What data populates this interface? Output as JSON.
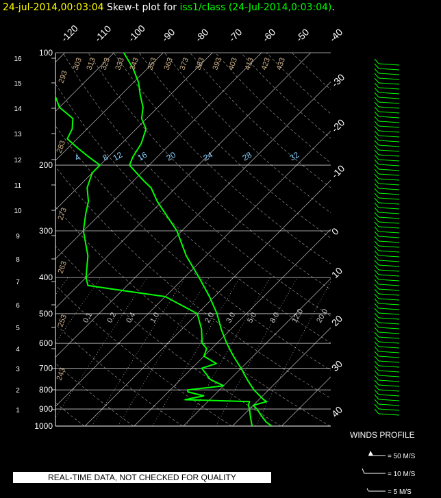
{
  "title": {
    "timestamp": "24-jul-2014,00:03:04",
    "plot_label": " Skew-t plot for ",
    "station": "iss1/class (24-Jul-2014,0:03:04)",
    "suffix": "."
  },
  "disclaimer": "REAL-TIME DATA, NOT CHECKED FOR QUALITY",
  "winds_profile": {
    "title": "WINDS PROFILE",
    "legend": [
      "= 50 M/S",
      "= 10 M/S",
      "= 5 M/S"
    ]
  },
  "colors": {
    "background": "#000000",
    "trace": "#00ff00",
    "isotherm": "#ffffff",
    "isobar": "#ffffff",
    "dry_adiabat_label": "#d2b48c",
    "mixing_ratio_label": "#87cefa",
    "wind_barb": "#00ff00"
  },
  "chart_data": {
    "type": "line",
    "title": "Skew-t plot",
    "pressure_levels": [
      100,
      200,
      300,
      400,
      500,
      600,
      700,
      800,
      900,
      1000
    ],
    "height_ticks": [
      "16",
      "15",
      "14",
      "13",
      "12",
      "11",
      "10",
      "9",
      "8",
      "7",
      "6",
      "5",
      "4",
      "3",
      "2",
      "1"
    ],
    "isotherm_labels_top": [
      "-120",
      "-110",
      "-100",
      "-90",
      "-80",
      "-70",
      "-60",
      "-50",
      "-40"
    ],
    "isotherm_labels_right": [
      "-30",
      "-20",
      "-10",
      "0",
      "10",
      "20",
      "30",
      "40"
    ],
    "dry_adiabat_labels": [
      "293",
      "303",
      "313",
      "323",
      "333",
      "343",
      "353",
      "363",
      "373",
      "383",
      "393",
      "403",
      "413",
      "423",
      "433",
      "283",
      "273",
      "263",
      "253",
      "243"
    ],
    "mixing_ratio_labels": [
      "4",
      "8",
      "12",
      "16",
      "20",
      "24",
      "28",
      "32"
    ],
    "saturation_labels": [
      "0.1",
      "0.2",
      "0.4",
      "1.0",
      "2.0",
      "3.0",
      "5.0",
      "8.0",
      "12.0",
      "20.0"
    ],
    "series": [
      {
        "name": "Temperature",
        "points": [
          [
            1000,
            28
          ],
          [
            975,
            26
          ],
          [
            950,
            24.5
          ],
          [
            925,
            23
          ],
          [
            900,
            21.5
          ],
          [
            880,
            20
          ],
          [
            860,
            22
          ],
          [
            850,
            21
          ],
          [
            800,
            17
          ],
          [
            750,
            13.5
          ],
          [
            700,
            10
          ],
          [
            650,
            6
          ],
          [
            600,
            2
          ],
          [
            550,
            -2
          ],
          [
            500,
            -6
          ],
          [
            450,
            -11
          ],
          [
            400,
            -17
          ],
          [
            350,
            -24
          ],
          [
            300,
            -31
          ],
          [
            250,
            -41
          ],
          [
            230,
            -45
          ],
          [
            220,
            -48
          ],
          [
            200,
            -54
          ],
          [
            190,
            -55
          ],
          [
            175,
            -56
          ],
          [
            160,
            -58
          ],
          [
            150,
            -61
          ],
          [
            140,
            -63
          ],
          [
            130,
            -66
          ],
          [
            120,
            -69
          ],
          [
            110,
            -73
          ],
          [
            100,
            -78
          ]
        ]
      },
      {
        "name": "Dewpoint",
        "points": [
          [
            1000,
            24
          ],
          [
            975,
            23
          ],
          [
            950,
            22
          ],
          [
            925,
            21
          ],
          [
            900,
            20
          ],
          [
            880,
            19
          ],
          [
            860,
            18.5
          ],
          [
            850,
            5
          ],
          [
            830,
            8
          ],
          [
            810,
            4
          ],
          [
            800,
            3.5
          ],
          [
            780,
            10
          ],
          [
            750,
            6
          ],
          [
            700,
            2
          ],
          [
            680,
            4
          ],
          [
            650,
            0
          ],
          [
            620,
            -1
          ],
          [
            600,
            -3
          ],
          [
            550,
            -6
          ],
          [
            500,
            -10
          ],
          [
            450,
            -20
          ],
          [
            430,
            -32
          ],
          [
            420,
            -38
          ],
          [
            400,
            -40
          ],
          [
            350,
            -44
          ],
          [
            300,
            -50
          ],
          [
            270,
            -53
          ],
          [
            250,
            -55
          ],
          [
            230,
            -58
          ],
          [
            210,
            -60
          ],
          [
            200,
            -60
          ],
          [
            190,
            -64
          ],
          [
            180,
            -68
          ],
          [
            170,
            -72
          ],
          [
            160,
            -73
          ],
          [
            150,
            -75
          ],
          [
            140,
            -80
          ],
          [
            120,
            -87
          ],
          [
            100,
            -92
          ]
        ]
      }
    ],
    "pressure_range": [
      1000,
      100
    ],
    "temperature_range_at_1000": [
      -16,
      40
    ],
    "grid": true,
    "legend": "none"
  }
}
